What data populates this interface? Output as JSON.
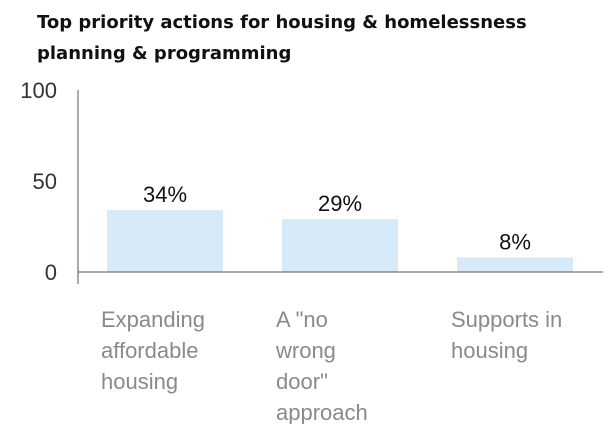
{
  "chart_data": {
    "type": "bar",
    "title_lines": [
      "Top priority actions for housing & homelessness",
      "planning & programming"
    ],
    "categories": [
      "Expanding affordable housing",
      "A \"no wrong door\" approach",
      "Supports in housing"
    ],
    "category_lines": [
      [
        "Expanding",
        "affordable",
        "housing"
      ],
      [
        "A \"no",
        "wrong",
        "door\"",
        "approach"
      ],
      [
        "Supports in",
        "housing"
      ]
    ],
    "values": [
      34,
      29,
      8
    ],
    "data_labels": [
      "34%",
      "29%",
      "8%"
    ],
    "yticks": [
      0,
      50,
      100
    ],
    "ytick_labels": [
      "0",
      "50",
      "100"
    ],
    "ylim": [
      0,
      100
    ],
    "grid": false,
    "legend": "none",
    "bar_color": "#d6eafa",
    "axis_color": "#555555"
  }
}
